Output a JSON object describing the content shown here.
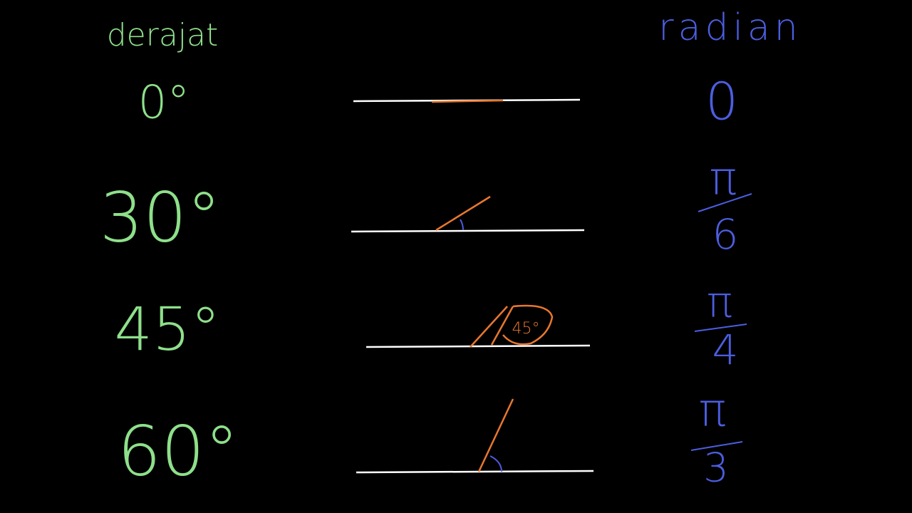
{
  "header": {
    "left": "derajat",
    "right": "radian"
  },
  "rows": [
    {
      "degree": "0°",
      "radian": {
        "numerator": "0"
      }
    },
    {
      "degree": "30°",
      "radian": {
        "numerator": "π",
        "denominator": "6"
      }
    },
    {
      "degree": "45°",
      "radian": {
        "numerator": "π",
        "denominator": "4"
      },
      "annotation": "45°"
    },
    {
      "degree": "60°",
      "radian": {
        "numerator": "π",
        "denominator": "3"
      }
    }
  ]
}
